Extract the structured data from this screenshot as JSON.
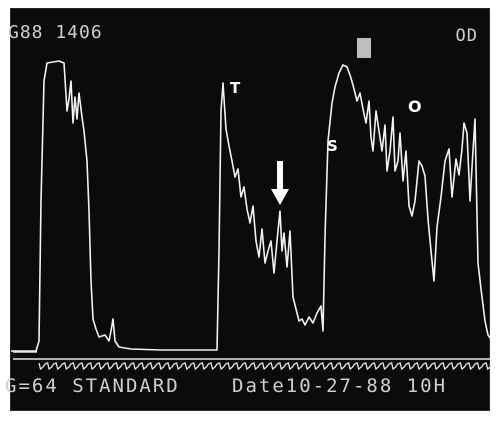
{
  "header": {
    "left": "G88 1406",
    "right": "OD"
  },
  "markers": {
    "t": "T",
    "s": "S",
    "o": "O"
  },
  "footer": {
    "left": "G=64 STANDARD",
    "right": "Date10-27-88 10H"
  },
  "colors": {
    "trace": "#f2f2f2",
    "background": "#0b0b0b",
    "text": "#cfcfcf"
  },
  "icons": {
    "arrow": "down-arrow-icon",
    "square": "square-marker-icon"
  }
}
